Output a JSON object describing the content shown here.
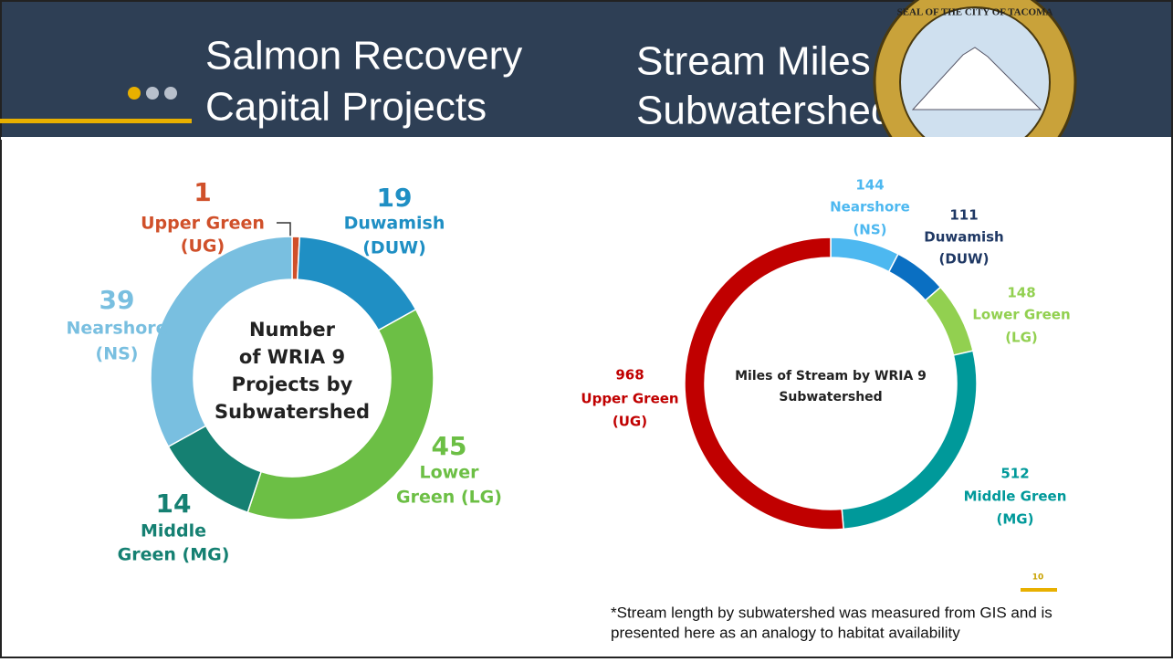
{
  "header": {
    "left_title": [
      "Salmon Recovery",
      "Capital Projects"
    ],
    "right_title": [
      "Stream Miles By",
      "Subwatershed"
    ],
    "seal_text": "SEAL OF THE CITY OF TACOMA"
  },
  "chart_data": [
    {
      "type": "pie",
      "center_text": [
        "Number",
        "of WRIA 9",
        "Projects by",
        "Subwatershed"
      ],
      "categories": [
        [
          "Upper Green",
          "(UG)"
        ],
        [
          "Duwamish",
          "(DUW)"
        ],
        [
          "Lower",
          "Green (LG)"
        ],
        [
          "Middle",
          "Green (MG)"
        ],
        [
          "Nearshore",
          "(NS)"
        ]
      ],
      "values": [
        1,
        19,
        45,
        14,
        39
      ],
      "colors": [
        "#d0502a",
        "#1f8fc4",
        "#6cbf45",
        "#158072",
        "#79bfe0"
      ]
    },
    {
      "type": "pie",
      "center_text": [
        "Miles of Stream by WRIA 9",
        "Subwatershed"
      ],
      "categories": [
        [
          "Nearshore",
          "(NS)"
        ],
        [
          "Duwamish",
          "(DUW)"
        ],
        [
          "Lower Green",
          "(LG)"
        ],
        [
          "Middle Green",
          "(MG)"
        ],
        [
          "Upper Green",
          "(UG)"
        ]
      ],
      "values": [
        144,
        111,
        148,
        512,
        968
      ],
      "colors": [
        "#4db8f0",
        "#0a6fc2",
        "#92d050",
        "#00999a",
        "#c00000"
      ]
    }
  ],
  "footnote": [
    "*Stream length by subwatershed was measured from GIS and is",
    "presented here as an analogy to habitat availability"
  ],
  "page_number": "10"
}
